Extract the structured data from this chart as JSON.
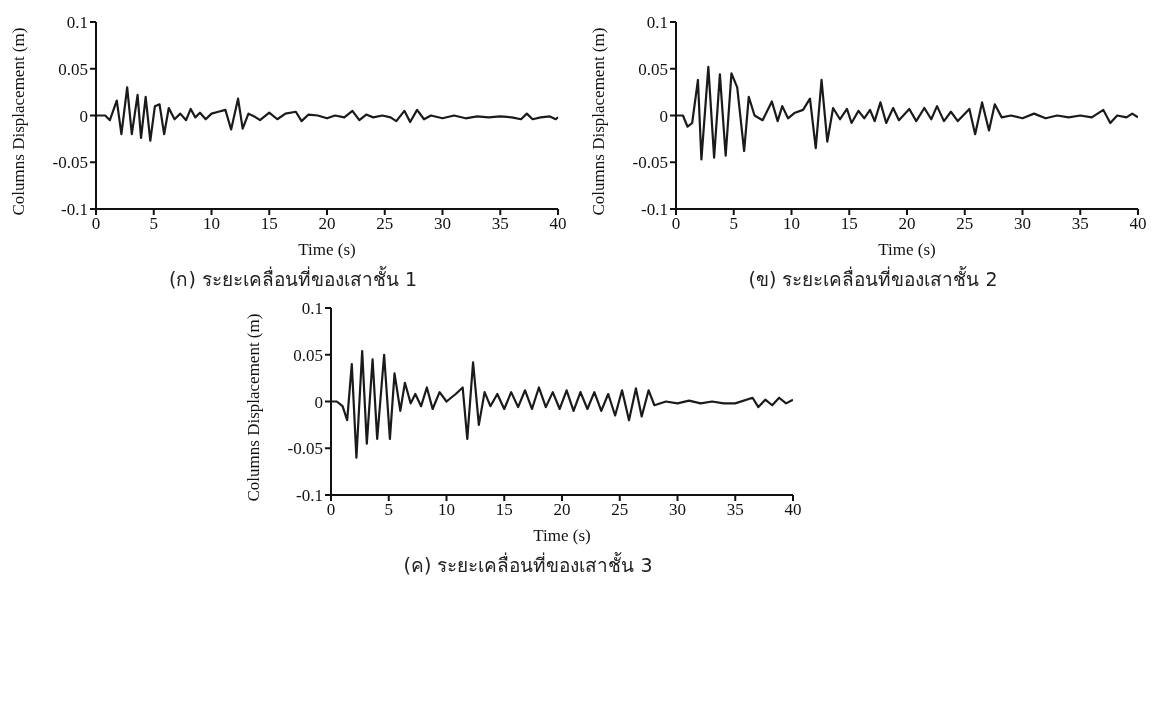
{
  "chart_data": [
    {
      "type": "line",
      "title": "(ก) ระยะเคลื่อนที่ของเสาชั้น 1",
      "xlabel": "Time (s)",
      "ylabel": "Columns Displacement (m)",
      "xlim": [
        0,
        40
      ],
      "xticks": [
        0,
        5,
        10,
        15,
        20,
        25,
        30,
        35,
        40
      ],
      "ylim": [
        -0.1,
        0.1
      ],
      "yticks": [
        -0.1,
        -0.05,
        0,
        0.05,
        0.1
      ],
      "color": "#1a1a1a",
      "x": [
        0,
        0.8,
        1.2,
        1.8,
        2.2,
        2.7,
        3.1,
        3.6,
        3.9,
        4.3,
        4.7,
        5.1,
        5.5,
        5.9,
        6.3,
        6.8,
        7.3,
        7.8,
        8.2,
        8.6,
        9.0,
        9.5,
        10,
        10.6,
        11.2,
        11.7,
        12.3,
        12.7,
        13.2,
        13.7,
        14.2,
        15,
        15.7,
        16.4,
        17.3,
        17.8,
        18.4,
        19.2,
        20,
        20.7,
        21.5,
        22.2,
        22.8,
        23.4,
        24,
        24.8,
        25.5,
        26,
        26.7,
        27.2,
        27.8,
        28.4,
        29,
        30,
        31,
        32,
        33,
        34,
        35,
        36,
        36.8,
        37.3,
        37.8,
        38.5,
        39.3,
        39.8,
        40
      ],
      "values": [
        0,
        0,
        -0.005,
        0.016,
        -0.02,
        0.03,
        -0.02,
        0.022,
        -0.024,
        0.02,
        -0.027,
        0.01,
        0.012,
        -0.02,
        0.008,
        -0.004,
        0.002,
        -0.005,
        0.007,
        -0.002,
        0.003,
        -0.004,
        0.002,
        0.004,
        0.006,
        -0.015,
        0.018,
        -0.014,
        0.002,
        -0.001,
        -0.005,
        0.003,
        -0.004,
        0.002,
        0.004,
        -0.006,
        0.001,
        0,
        -0.003,
        0,
        -0.002,
        0.005,
        -0.005,
        0.001,
        -0.002,
        0,
        -0.002,
        -0.006,
        0.005,
        -0.007,
        0.006,
        -0.004,
        0,
        -0.003,
        0,
        -0.003,
        -0.001,
        -0.002,
        -0.001,
        -0.002,
        -0.004,
        0.002,
        -0.004,
        -0.002,
        -0.001,
        -0.004,
        -0.002
      ]
    },
    {
      "type": "line",
      "title": "(ข) ระยะเคลื่อนที่ของเสาชั้น 2",
      "xlabel": "Time (s)",
      "ylabel": "Columns Displacement (m)",
      "xlim": [
        0,
        40
      ],
      "xticks": [
        0,
        5,
        10,
        15,
        20,
        25,
        30,
        35,
        40
      ],
      "ylim": [
        -0.1,
        0.1
      ],
      "yticks": [
        -0.1,
        -0.05,
        0,
        0.05,
        0.1
      ],
      "color": "#1a1a1a",
      "x": [
        0,
        0.6,
        1.0,
        1.4,
        1.9,
        2.2,
        2.8,
        3.3,
        3.8,
        4.3,
        4.8,
        5.3,
        5.9,
        6.3,
        6.8,
        7.5,
        8.3,
        8.8,
        9.2,
        9.7,
        10.3,
        11,
        11.6,
        12.1,
        12.6,
        13.1,
        13.6,
        14.2,
        14.8,
        15.2,
        15.8,
        16.3,
        16.8,
        17.2,
        17.7,
        18.2,
        18.8,
        19.3,
        20.2,
        20.8,
        21.5,
        22.1,
        22.6,
        23.2,
        23.8,
        24.4,
        25.4,
        25.9,
        26.5,
        27.1,
        27.6,
        28.2,
        29,
        30,
        31,
        32,
        33,
        34,
        35,
        36,
        37,
        37.6,
        38.2,
        39,
        39.5,
        40
      ],
      "values": [
        0,
        0,
        -0.012,
        -0.008,
        0.038,
        -0.047,
        0.052,
        -0.045,
        0.044,
        -0.043,
        0.045,
        0.03,
        -0.038,
        0.02,
        0,
        -0.005,
        0.015,
        -0.006,
        0.01,
        -0.003,
        0.003,
        0.006,
        0.018,
        -0.035,
        0.038,
        -0.028,
        0.008,
        -0.004,
        0.007,
        -0.008,
        0.005,
        -0.003,
        0.006,
        -0.006,
        0.014,
        -0.008,
        0.008,
        -0.005,
        0.007,
        -0.006,
        0.008,
        -0.004,
        0.01,
        -0.006,
        0.004,
        -0.006,
        0.007,
        -0.02,
        0.014,
        -0.016,
        0.012,
        -0.002,
        0,
        -0.003,
        0.002,
        -0.003,
        0,
        -0.002,
        0,
        -0.002,
        0.006,
        -0.008,
        0,
        -0.002,
        0.002,
        -0.002
      ]
    },
    {
      "type": "line",
      "title": "(ค) ระยะเคลื่อนที่ของเสาชั้น 3",
      "xlabel": "Time (s)",
      "ylabel": "Columns Displacement (m)",
      "xlim": [
        0,
        40
      ],
      "xticks": [
        0,
        5,
        10,
        15,
        20,
        25,
        30,
        35,
        40
      ],
      "ylim": [
        -0.1,
        0.1
      ],
      "yticks": [
        -0.1,
        -0.05,
        0,
        0.05,
        0.1
      ],
      "color": "#1a1a1a",
      "x": [
        0,
        0.5,
        1.0,
        1.4,
        1.8,
        2.2,
        2.7,
        3.1,
        3.6,
        4.0,
        4.6,
        5.1,
        5.5,
        6,
        6.4,
        6.9,
        7.3,
        7.8,
        8.3,
        8.8,
        9.4,
        10,
        10.8,
        11.4,
        11.8,
        12.3,
        12.8,
        13.3,
        13.8,
        14.4,
        15,
        15.6,
        16.2,
        16.8,
        17.4,
        18,
        18.6,
        19.2,
        19.8,
        20.4,
        21,
        21.6,
        22.2,
        22.8,
        23.4,
        24,
        24.6,
        25.2,
        25.8,
        26.4,
        26.9,
        27.5,
        28,
        29,
        30,
        31,
        32,
        33,
        34,
        35,
        36.5,
        37,
        37.6,
        38.2,
        38.8,
        39.4,
        40
      ],
      "values": [
        0,
        0,
        -0.005,
        -0.02,
        0.04,
        -0.06,
        0.054,
        -0.045,
        0.045,
        -0.04,
        0.05,
        -0.04,
        0.03,
        -0.01,
        0.02,
        -0.002,
        0.008,
        -0.005,
        0.015,
        -0.008,
        0.01,
        0,
        0.008,
        0.015,
        -0.04,
        0.042,
        -0.025,
        0.01,
        -0.005,
        0.008,
        -0.008,
        0.01,
        -0.006,
        0.012,
        -0.008,
        0.015,
        -0.006,
        0.01,
        -0.008,
        0.012,
        -0.01,
        0.01,
        -0.008,
        0.01,
        -0.01,
        0.008,
        -0.015,
        0.012,
        -0.02,
        0.014,
        -0.016,
        0.012,
        -0.004,
        0,
        -0.002,
        0.001,
        -0.002,
        0,
        -0.002,
        -0.002,
        0.004,
        -0.006,
        0.002,
        -0.004,
        0.004,
        -0.002,
        0.002
      ]
    }
  ]
}
